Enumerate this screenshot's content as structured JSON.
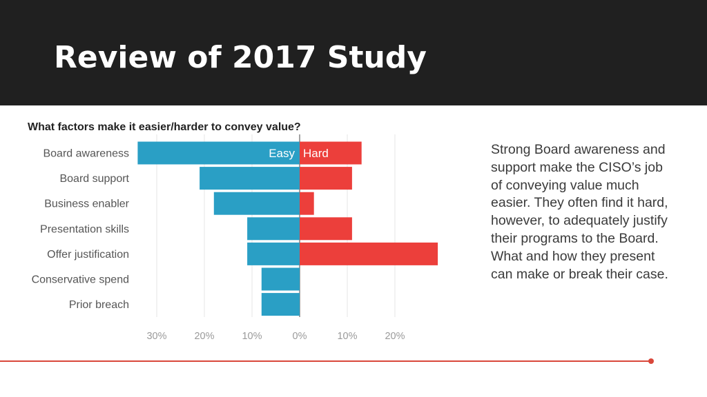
{
  "slide": {
    "title": "Review of 2017 Study"
  },
  "description": {
    "lines": [
      "Strong Board awareness and",
      "support make the CISO’s job",
      "of conveying value much",
      "easier. They often find it hard,",
      "however, to adequately justify",
      "their programs to the Board.",
      "What and how they present",
      "can make or break their case."
    ]
  },
  "colors": {
    "header_bg": "#202020",
    "easy": "#2a9fc5",
    "hard": "#ec3f3b",
    "accent_line": "#d9473a"
  },
  "chart_data": {
    "type": "bar",
    "orientation": "horizontal-diverging",
    "title": "What factors make it easier/harder to convey value?",
    "categories": [
      "Board awareness",
      "Board support",
      "Business enabler",
      "Presentation skills",
      "Offer justification",
      "Conservative spend",
      "Prior breach"
    ],
    "series": [
      {
        "name": "Easy",
        "direction": "left",
        "values": [
          34,
          21,
          18,
          11,
          11,
          8,
          8
        ]
      },
      {
        "name": "Hard",
        "direction": "right",
        "values": [
          13,
          11,
          3,
          11,
          29,
          0,
          0
        ]
      }
    ],
    "x_ticks": [
      "30%",
      "20%",
      "10%",
      "0%",
      "10%",
      "20%"
    ],
    "xlim": [
      -34,
      29
    ],
    "grid": true,
    "legend": "inline-top-center"
  }
}
